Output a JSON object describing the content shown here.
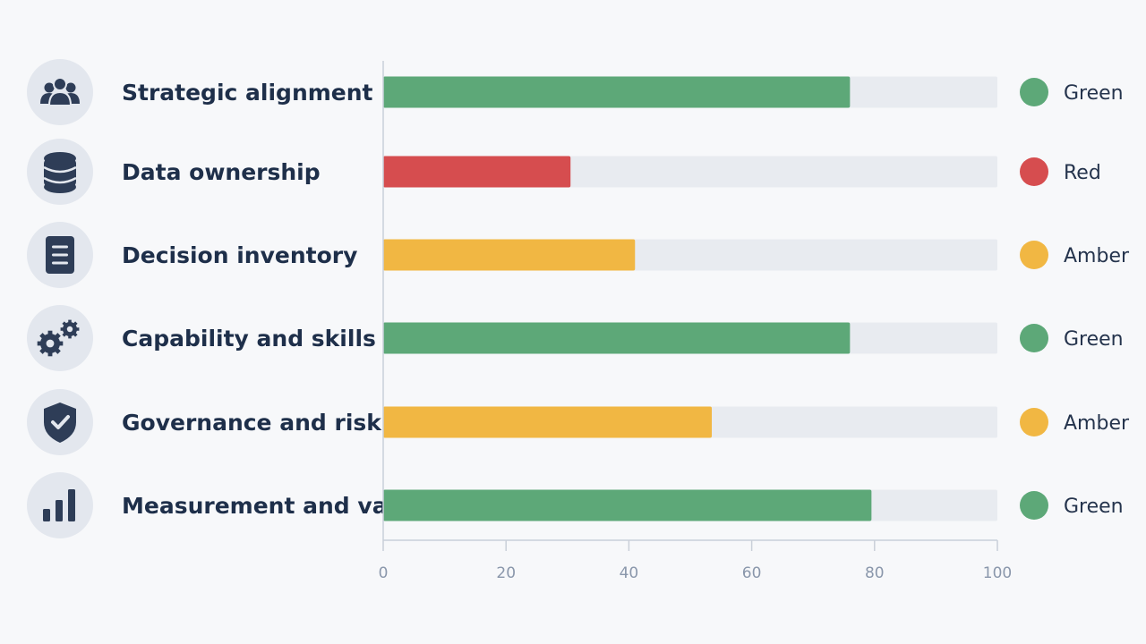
{
  "chart_data": {
    "type": "bar",
    "orientation": "horizontal",
    "categories": [
      "Strategic alignment",
      "Data ownership",
      "Decision inventory",
      "Capability and skills",
      "Governance and risk",
      "Measurement and value"
    ],
    "values": [
      76,
      30.5,
      41,
      76,
      53.5,
      79.5
    ],
    "status": [
      "Green",
      "Red",
      "Amber",
      "Green",
      "Amber",
      "Green"
    ],
    "icons": [
      "people-icon",
      "database-icon",
      "document-icon",
      "gears-icon",
      "shield-check-icon",
      "bar-chart-icon"
    ],
    "xlim": [
      0,
      100
    ],
    "xticks": [
      0,
      20,
      40,
      60,
      80,
      100
    ],
    "xlabel": "",
    "ylabel": "",
    "title": "",
    "grid": false,
    "colors": {
      "Green": "#5da878",
      "Red": "#d64d4f",
      "Amber": "#f1b743",
      "track": "#e8ebf0",
      "icon_circle": "#e3e7ee",
      "icon": "#2e3d57",
      "axis": "#c9cfd9"
    }
  }
}
